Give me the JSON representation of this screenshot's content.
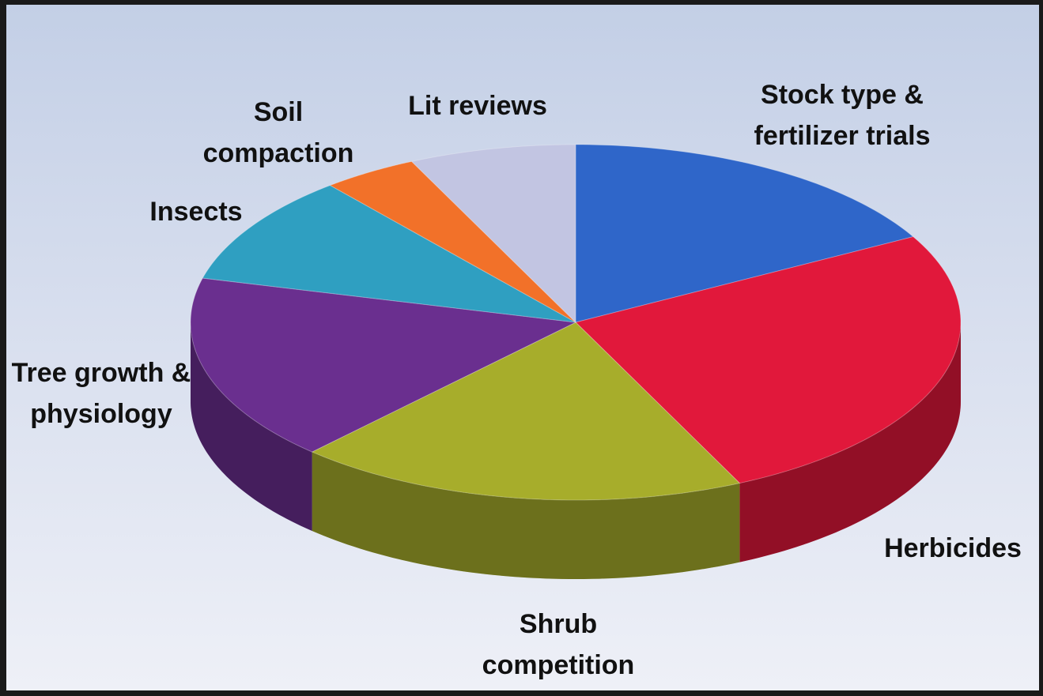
{
  "chart_data": {
    "type": "pie",
    "categories": [
      "Stock type & fertilizer trials",
      "Herbicides",
      "Shrub competition",
      "Tree growth & physiology",
      "Insects",
      "Soil compaction",
      "Lit reviews"
    ],
    "values": [
      17,
      26,
      19,
      17,
      10,
      4,
      7
    ],
    "colors": [
      "#2f66c9",
      "#e1183b",
      "#a7ad2b",
      "#6a2f8f",
      "#2f9fc1",
      "#f27129",
      "#c2c5e2"
    ]
  }
}
